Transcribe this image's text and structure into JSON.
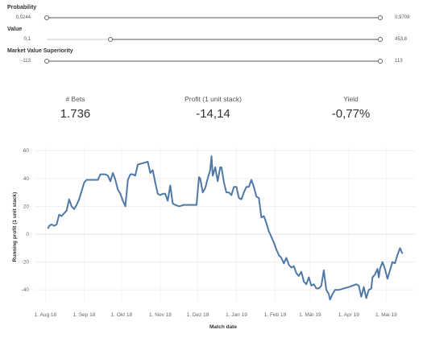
{
  "filters": [
    {
      "label": "Probability",
      "min": "0,0244",
      "max": "0,9709",
      "low_frac": 0.0,
      "high_frac": 1.0
    },
    {
      "label": "Value",
      "min": "0,1",
      "max": "453,8",
      "low_frac": 0.19,
      "high_frac": 1.0
    },
    {
      "label": "Market Value Superiority",
      "min": "-113",
      "max": "113",
      "low_frac": 0.0,
      "high_frac": 1.0
    }
  ],
  "kpis": [
    {
      "label": "# Bets",
      "value": "1.736"
    },
    {
      "label": "Profit  (1 unit stack)",
      "value": "-14,14"
    },
    {
      "label": "Yield",
      "value": "-0,77%"
    }
  ],
  "colors": {
    "line": "#4e79a7",
    "grid": "#ececec",
    "zero": "#dcdcdc"
  },
  "chart_data": {
    "type": "line",
    "xlabel": "Match date",
    "ylabel": "Running profit (1 unit stack)",
    "ylim": [
      -48,
      63
    ],
    "xlim": [
      "2018-07-24",
      "2019-05-24"
    ],
    "yticks": [
      60,
      40,
      20,
      0,
      -20,
      -40
    ],
    "ytick_labels": [
      "60",
      "40",
      "20",
      "0",
      "-20",
      "-40"
    ],
    "xticks": [
      "2018-08-01",
      "2018-09-01",
      "2018-10-01",
      "2018-11-01",
      "2018-12-01",
      "2019-01-01",
      "2019-02-01",
      "2019-03-01",
      "2019-04-01",
      "2019-05-01"
    ],
    "xtick_labels": [
      "1. Aug 18",
      "1. Sep 18",
      "1. Okt 18",
      "1. Nov 18",
      "1. Dez 18",
      "1. Jan 19",
      "1. Feb 19",
      "1. Mär 19",
      "1. Apr 19",
      "1. Mai 19"
    ],
    "grid": true,
    "series": [
      {
        "points": [
          [
            "2018-08-03",
            4
          ],
          [
            "2018-08-04",
            6
          ],
          [
            "2018-08-06",
            7
          ],
          [
            "2018-08-08",
            6
          ],
          [
            "2018-08-10",
            7
          ],
          [
            "2018-08-12",
            14
          ],
          [
            "2018-08-14",
            13
          ],
          [
            "2018-08-16",
            15
          ],
          [
            "2018-08-18",
            17
          ],
          [
            "2018-08-20",
            25
          ],
          [
            "2018-08-22",
            20
          ],
          [
            "2018-08-24",
            18
          ],
          [
            "2018-08-26",
            21
          ],
          [
            "2018-08-28",
            25
          ],
          [
            "2018-08-30",
            31
          ],
          [
            "2018-09-01",
            37
          ],
          [
            "2018-09-03",
            39
          ],
          [
            "2018-09-08",
            39
          ],
          [
            "2018-09-12",
            39
          ],
          [
            "2018-09-14",
            43
          ],
          [
            "2018-09-16",
            43
          ],
          [
            "2018-09-18",
            43
          ],
          [
            "2018-09-20",
            42
          ],
          [
            "2018-09-22",
            38
          ],
          [
            "2018-09-24",
            44
          ],
          [
            "2018-09-26",
            39
          ],
          [
            "2018-09-28",
            32
          ],
          [
            "2018-09-30",
            29
          ],
          [
            "2018-10-02",
            24
          ],
          [
            "2018-10-04",
            20
          ],
          [
            "2018-10-06",
            39
          ],
          [
            "2018-10-08",
            43
          ],
          [
            "2018-10-10",
            43
          ],
          [
            "2018-10-12",
            42
          ],
          [
            "2018-10-14",
            50
          ],
          [
            "2018-10-18",
            51
          ],
          [
            "2018-10-22",
            52
          ],
          [
            "2018-10-24",
            44
          ],
          [
            "2018-10-26",
            46
          ],
          [
            "2018-10-28",
            37
          ],
          [
            "2018-10-30",
            29
          ],
          [
            "2018-11-01",
            28
          ],
          [
            "2018-11-03",
            29
          ],
          [
            "2018-11-05",
            29
          ],
          [
            "2018-11-07",
            24
          ],
          [
            "2018-11-09",
            35
          ],
          [
            "2018-11-11",
            22
          ],
          [
            "2018-11-13",
            21
          ],
          [
            "2018-11-16",
            20
          ],
          [
            "2018-11-20",
            21
          ],
          [
            "2018-11-24",
            21
          ],
          [
            "2018-11-28",
            21
          ],
          [
            "2018-11-30",
            21
          ],
          [
            "2018-12-02",
            41
          ],
          [
            "2018-12-03",
            40
          ],
          [
            "2018-12-05",
            30
          ],
          [
            "2018-12-07",
            33
          ],
          [
            "2018-12-09",
            40
          ],
          [
            "2018-12-11",
            46
          ],
          [
            "2018-12-12",
            56
          ],
          [
            "2018-12-13",
            42
          ],
          [
            "2018-12-15",
            48
          ],
          [
            "2018-12-17",
            38
          ],
          [
            "2018-12-19",
            48
          ],
          [
            "2018-12-20",
            48
          ],
          [
            "2018-12-22",
            37
          ],
          [
            "2018-12-24",
            30
          ],
          [
            "2018-12-26",
            30
          ],
          [
            "2018-12-28",
            28
          ],
          [
            "2018-12-30",
            34
          ],
          [
            "2019-01-01",
            34
          ],
          [
            "2019-01-03",
            26
          ],
          [
            "2019-01-05",
            25
          ],
          [
            "2019-01-07",
            30
          ],
          [
            "2019-01-09",
            34
          ],
          [
            "2019-01-11",
            34
          ],
          [
            "2019-01-13",
            39
          ],
          [
            "2019-01-15",
            34
          ],
          [
            "2019-01-17",
            27
          ],
          [
            "2019-01-19",
            26
          ],
          [
            "2019-01-21",
            12
          ],
          [
            "2019-01-23",
            13
          ],
          [
            "2019-01-25",
            8
          ],
          [
            "2019-01-27",
            2
          ],
          [
            "2019-01-29",
            -2
          ],
          [
            "2019-01-31",
            -6
          ],
          [
            "2019-02-02",
            -11
          ],
          [
            "2019-02-04",
            -15
          ],
          [
            "2019-02-06",
            -17
          ],
          [
            "2019-02-08",
            -21
          ],
          [
            "2019-02-10",
            -17
          ],
          [
            "2019-02-12",
            -22
          ],
          [
            "2019-02-14",
            -24
          ],
          [
            "2019-02-16",
            -23
          ],
          [
            "2019-02-18",
            -28
          ],
          [
            "2019-02-20",
            -30
          ],
          [
            "2019-02-22",
            -27
          ],
          [
            "2019-02-24",
            -34
          ],
          [
            "2019-02-26",
            -36
          ],
          [
            "2019-02-28",
            -31
          ],
          [
            "2019-03-02",
            -37
          ],
          [
            "2019-03-04",
            -36
          ],
          [
            "2019-03-06",
            -39
          ],
          [
            "2019-03-08",
            -39
          ],
          [
            "2019-03-10",
            -37
          ],
          [
            "2019-03-12",
            -26
          ],
          [
            "2019-03-14",
            -40
          ],
          [
            "2019-03-16",
            -43
          ],
          [
            "2019-03-17",
            -47
          ],
          [
            "2019-03-19",
            -43
          ],
          [
            "2019-03-21",
            -40
          ],
          [
            "2019-03-24",
            -40
          ],
          [
            "2019-03-28",
            -39
          ],
          [
            "2019-04-01",
            -38
          ],
          [
            "2019-04-04",
            -37
          ],
          [
            "2019-04-07",
            -36
          ],
          [
            "2019-04-09",
            -37
          ],
          [
            "2019-04-11",
            -45
          ],
          [
            "2019-04-13",
            -38
          ],
          [
            "2019-04-15",
            -46
          ],
          [
            "2019-04-17",
            -40
          ],
          [
            "2019-04-19",
            -39
          ],
          [
            "2019-04-20",
            -31
          ],
          [
            "2019-04-22",
            -29
          ],
          [
            "2019-04-24",
            -25
          ],
          [
            "2019-04-25",
            -31
          ],
          [
            "2019-04-26",
            -25
          ],
          [
            "2019-04-28",
            -20
          ],
          [
            "2019-04-30",
            -25
          ],
          [
            "2019-05-02",
            -32
          ],
          [
            "2019-05-04",
            -26
          ],
          [
            "2019-05-06",
            -20
          ],
          [
            "2019-05-08",
            -21
          ],
          [
            "2019-05-10",
            -15
          ],
          [
            "2019-05-12",
            -10
          ],
          [
            "2019-05-14",
            -14
          ]
        ]
      }
    ]
  }
}
